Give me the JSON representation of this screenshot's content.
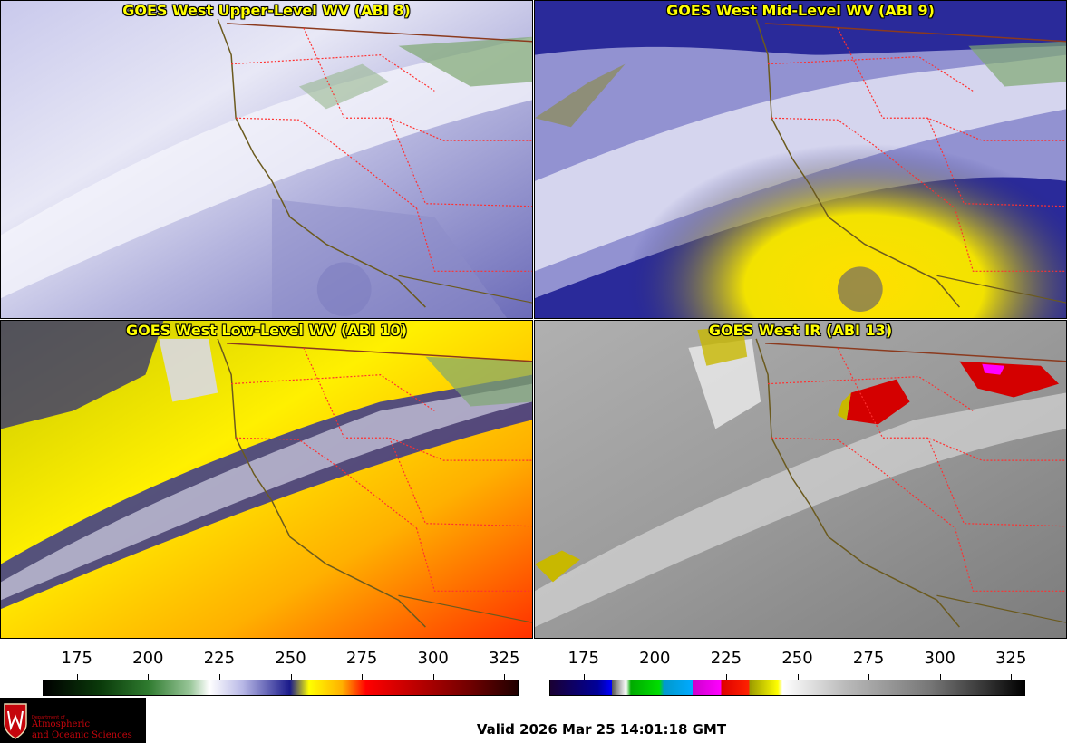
{
  "panels": [
    {
      "title": "GOES West Upper-Level WV (ABI 8)"
    },
    {
      "title": "GOES West Mid-Level WV (ABI 9)"
    },
    {
      "title": "GOES West Low-Level WV (ABI 10)"
    },
    {
      "title": "GOES West IR (ABI 13)"
    }
  ],
  "wv_scale": {
    "ticks": [
      "175",
      "200",
      "225",
      "250",
      "275",
      "300",
      "325"
    ],
    "min": 163,
    "max": 330
  },
  "ir_scale": {
    "ticks": [
      "175",
      "200",
      "225",
      "250",
      "275",
      "300",
      "325"
    ],
    "min": 163,
    "max": 330
  },
  "logo": {
    "dept": "Department of",
    "line1": "Atmospheric",
    "line2": "and Oceanic Sciences"
  },
  "valid_time": "Valid 2026 Mar 25 14:01:18 GMT",
  "colors": {
    "wv_moist": "#ffffff",
    "wv_mid": "#2a2a9a",
    "wv_dry": "#ffff00",
    "wv_very_dry": "#ff6600",
    "ir_gray": "#8a8a8a",
    "state_lines": "#ff3030",
    "coast": "#6b5a1e"
  }
}
